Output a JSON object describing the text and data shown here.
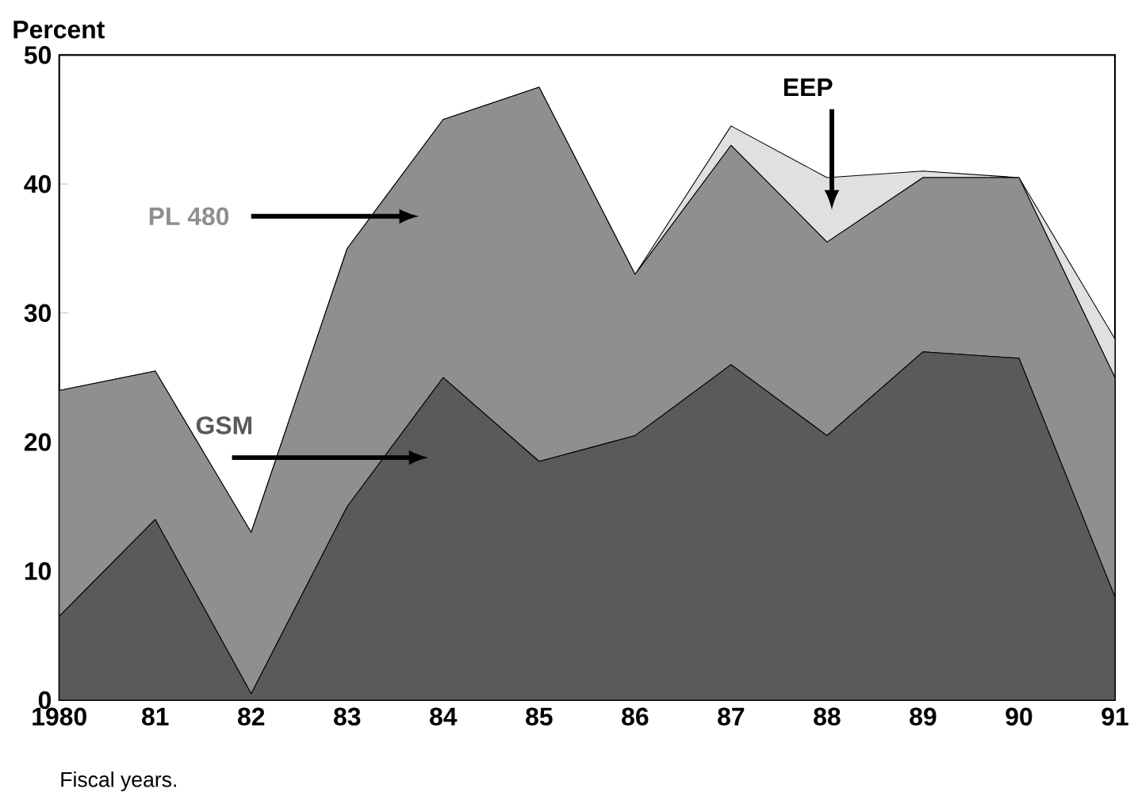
{
  "chart_data": {
    "type": "area",
    "stacked": true,
    "ylabel": "Percent",
    "categories": [
      "1980",
      "81",
      "82",
      "83",
      "84",
      "85",
      "86",
      "87",
      "88",
      "89",
      "90",
      "91"
    ],
    "series": [
      {
        "name": "GSM",
        "color": "#5a5a5a",
        "values": [
          6.5,
          14,
          0.5,
          15,
          25,
          18.5,
          20.5,
          26,
          20.5,
          27,
          26.5,
          8
        ]
      },
      {
        "name": "PL 480",
        "color": "#8f8f8f",
        "values": [
          17.5,
          11.5,
          12.5,
          20,
          20,
          29,
          12.5,
          17,
          15,
          13.5,
          14,
          17
        ]
      },
      {
        "name": "EEP",
        "color": "#e0e0e0",
        "values": [
          0,
          0,
          0,
          0,
          0,
          0,
          0,
          1.5,
          5,
          0.5,
          0,
          3
        ]
      }
    ],
    "ylim": [
      0,
      50
    ],
    "yticks": [
      0,
      10,
      20,
      30,
      40,
      50
    ],
    "annotations": [
      "Fiscal years."
    ],
    "grid": false
  }
}
